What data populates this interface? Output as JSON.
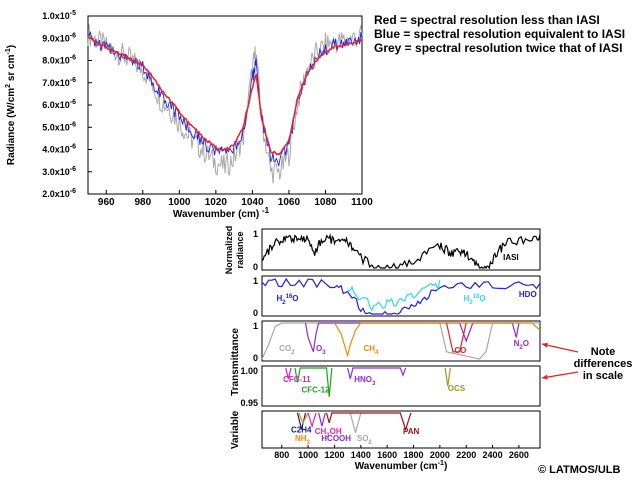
{
  "legend": {
    "red": "Red = spectral resolution less than IASI",
    "blue": "Blue = spectral resolution equivalent to IASI",
    "grey": "Grey = spectral resolution twice that of IASI"
  },
  "note": [
    "Note",
    "differences",
    "in scale"
  ],
  "credit": "© LATMOS/ULB",
  "colors": {
    "red": "#e8202a",
    "blue": "#2020e0",
    "grey": "#a8a8a8",
    "cyan": "#30d8f0",
    "black": "#000000"
  },
  "chart_data": [
    {
      "type": "line",
      "xlabel": "Wavenumber (cm) -1",
      "ylabel": "Radiance (W/cm2 sr cm-1)",
      "xlim": [
        950,
        1100
      ],
      "ylim": [
        2e-06,
        1e-05
      ],
      "x_ticks": [
        "960",
        "980",
        "1000",
        "1020",
        "1040",
        "1060",
        "1080",
        "1100"
      ],
      "y_ticks": [
        "1.0x10-5",
        "9.0x10-6",
        "8.0x10-6",
        "7.0x10-6",
        "6.0x10-6",
        "5.0x10-6",
        "4.0x10-6",
        "3.0x10-6",
        "2.0x10-6"
      ],
      "series": [
        {
          "color": "grey",
          "x": [
            950,
            955,
            960,
            965,
            970,
            975,
            980,
            985,
            990,
            995,
            1000,
            1005,
            1010,
            1015,
            1020,
            1025,
            1030,
            1035,
            1040,
            1042,
            1045,
            1050,
            1055,
            1060,
            1065,
            1070,
            1075,
            1080,
            1085,
            1090,
            1095,
            1100
          ],
          "values": [
            9.2e-06,
            8.9e-06,
            8.6e-06,
            8.4e-06,
            8.2e-06,
            7.9e-06,
            7.6e-06,
            7e-06,
            6.2e-06,
            5.8e-06,
            5.2e-06,
            4.6e-06,
            4.2e-06,
            3.8e-06,
            3.4e-06,
            3.2e-06,
            3.6e-06,
            4.6e-06,
            7.6e-06,
            8.4e-06,
            5.4e-06,
            3e-06,
            3e-06,
            3.8e-06,
            6.2e-06,
            7.6e-06,
            8.3e-06,
            8.7e-06,
            8.8e-06,
            8.9e-06,
            9e-06,
            9.1e-06
          ]
        },
        {
          "color": "blue",
          "x": [
            950,
            955,
            960,
            965,
            970,
            975,
            980,
            985,
            990,
            995,
            1000,
            1005,
            1010,
            1015,
            1020,
            1025,
            1030,
            1035,
            1040,
            1042,
            1045,
            1050,
            1055,
            1060,
            1065,
            1070,
            1075,
            1080,
            1085,
            1090,
            1095,
            1100
          ],
          "values": [
            9.1e-06,
            8.8e-06,
            8.6e-06,
            8.4e-06,
            8.2e-06,
            8e-06,
            7.7e-06,
            7.1e-06,
            6.5e-06,
            6e-06,
            5.5e-06,
            5e-06,
            4.6e-06,
            4.2e-06,
            3.9e-06,
            3.8e-06,
            4e-06,
            4.8e-06,
            7.2e-06,
            7.9e-06,
            5.4e-06,
            3.6e-06,
            3.5e-06,
            4.2e-06,
            6.3e-06,
            7.5e-06,
            8.1e-06,
            8.5e-06,
            8.7e-06,
            8.8e-06,
            8.9e-06,
            9e-06
          ]
        },
        {
          "color": "red",
          "x": [
            950,
            955,
            960,
            965,
            970,
            975,
            980,
            985,
            990,
            995,
            1000,
            1005,
            1010,
            1015,
            1020,
            1025,
            1030,
            1035,
            1040,
            1042,
            1045,
            1050,
            1055,
            1060,
            1065,
            1070,
            1075,
            1080,
            1085,
            1090,
            1095,
            1100
          ],
          "values": [
            9.1e-06,
            8.8e-06,
            8.6e-06,
            8.4e-06,
            8.2e-06,
            8e-06,
            7.8e-06,
            7.3e-06,
            6.7e-06,
            6.2e-06,
            5.7e-06,
            5.2e-06,
            4.8e-06,
            4.4e-06,
            4.1e-06,
            4e-06,
            4.2e-06,
            5e-06,
            6.8e-06,
            7.4e-06,
            5.4e-06,
            3.9e-06,
            3.8e-06,
            4.4e-06,
            6.4e-06,
            7.4e-06,
            8e-06,
            8.4e-06,
            8.6e-06,
            8.7e-06,
            8.8e-06,
            8.9e-06
          ]
        }
      ]
    },
    {
      "type": "line",
      "xlabel": "Wavenumber (cm-1)",
      "xlim": [
        650,
        2760
      ],
      "x_ticks": [
        "800",
        "1000",
        "1200",
        "1400",
        "1600",
        "1800",
        "2000",
        "2200",
        "2400",
        "2600"
      ],
      "group_labels": {
        "normalized": "Normalized radiance",
        "transmittance": "Transmittance",
        "variable": "Variable"
      },
      "panels": [
        {
          "name": "IASI",
          "y_ticks": [
            "1",
            "0"
          ],
          "labels": [
            {
              "text": "IASI",
              "color": "black",
              "x": 2480,
              "y": 0.3
            }
          ],
          "series": [
            {
              "color": "black",
              "x": [
                650,
                700,
                750,
                800,
                850,
                900,
                950,
                1000,
                1050,
                1100,
                1150,
                1200,
                1250,
                1300,
                1350,
                1400,
                1500,
                1600,
                1700,
                1800,
                1900,
                2000,
                2050,
                2100,
                2150,
                2200,
                2250,
                2300,
                2350,
                2400,
                2450,
                2500,
                2600,
                2700,
                2760
              ],
              "values": [
                0.2,
                0.6,
                0.85,
                0.9,
                0.95,
                0.95,
                0.92,
                0.9,
                0.5,
                0.88,
                0.9,
                0.85,
                0.85,
                0.8,
                0.6,
                0.4,
                0.15,
                0.1,
                0.15,
                0.3,
                0.5,
                0.7,
                0.6,
                0.5,
                0.55,
                0.5,
                0.3,
                0.1,
                0.05,
                0.3,
                0.6,
                0.8,
                0.85,
                0.9,
                0.9
              ]
            }
          ]
        },
        {
          "name": "water",
          "y_ticks": [
            "1",
            "0"
          ],
          "labels": [
            {
              "text": "H2 16O",
              "color": "blue",
              "x": 760,
              "y": 0.45
            },
            {
              "text": "H2 18O",
              "color": "cyan",
              "x": 2180,
              "y": 0.45
            },
            {
              "text": "HDO",
              "color": "blue",
              "x": 2600,
              "y": 0.55
            }
          ],
          "series": [
            {
              "color": "blue",
              "x": [
                650,
                800,
                1000,
                1200,
                1300,
                1400,
                1500,
                1600,
                1700,
                1800,
                1900,
                2000,
                2200,
                2400,
                2600,
                2760
              ],
              "values": [
                0.95,
                0.98,
                0.99,
                0.95,
                0.7,
                0.3,
                0.05,
                0.1,
                0.2,
                0.4,
                0.6,
                0.8,
                0.9,
                0.95,
                0.9,
                0.85
              ]
            },
            {
              "color": "cyan",
              "x": [
                1300,
                1400,
                1500,
                1600,
                1700,
                1800,
                1900,
                2000
              ],
              "values": [
                0.9,
                0.6,
                0.3,
                0.4,
                0.5,
                0.6,
                0.8,
                0.95
              ]
            }
          ]
        },
        {
          "name": "transmittance-1",
          "y_ticks": [
            "1",
            "0"
          ],
          "labels": [
            {
              "text": "CO2",
              "color": "grey",
              "x": 780,
              "y": 0.3
            },
            {
              "text": "O3",
              "color": "purple",
              "x": 1060,
              "y": 0.3
            },
            {
              "text": "CH4",
              "color": "orange",
              "x": 1420,
              "y": 0.3
            },
            {
              "text": "CO",
              "color": "red",
              "x": 2110,
              "y": 0.25
            },
            {
              "text": "N2O",
              "color": "purple",
              "x": 2560,
              "y": 0.45
            }
          ],
          "series": [
            {
              "color": "grey",
              "x": [
                650,
                700,
                750,
                800,
                2000,
                2050,
                2300,
                2350,
                2400,
                2760
              ],
              "values": [
                0.0,
                0.4,
                0.9,
                1.0,
                1.0,
                0.2,
                0.0,
                0.2,
                1.0,
                1.0
              ]
            },
            {
              "color": "purple",
              "x": [
                980,
                1000,
                1040,
                1060,
                1080,
                2150,
                2200,
                2250,
                2550,
                2580,
                2600
              ],
              "values": [
                1.0,
                0.6,
                0.2,
                0.7,
                1.0,
                1.0,
                0.5,
                1.0,
                1.0,
                0.6,
                1.0
              ]
            },
            {
              "color": "orange",
              "x": [
                1200,
                1250,
                1300,
                1320,
                1360,
                1400,
                2700,
                2760
              ],
              "values": [
                1.0,
                0.7,
                0.1,
                0.4,
                0.8,
                1.0,
                1.0,
                0.8
              ]
            },
            {
              "color": "red",
              "x": [
                2050,
                2100,
                2150,
                2200
              ],
              "values": [
                1.0,
                0.2,
                0.2,
                1.0
              ]
            }
          ]
        },
        {
          "name": "transmittance-2",
          "y_ticks": [
            "1.00",
            "0.95"
          ],
          "labels": [
            {
              "text": "CFC-11",
              "color": "magenta",
              "x": 810,
              "y": 0.985
            },
            {
              "text": "CFC-12",
              "color": "green",
              "x": 950,
              "y": 0.97
            },
            {
              "text": "HNO3",
              "color": "purple",
              "x": 1350,
              "y": 0.985
            },
            {
              "text": "OCS",
              "color": "olive",
              "x": 2060,
              "y": 0.972
            }
          ],
          "series": [
            {
              "color": "magenta",
              "x": [
                830,
                850,
                870
              ],
              "values": [
                1.0,
                0.985,
                1.0
              ]
            },
            {
              "color": "green",
              "x": [
                900,
                920,
                940,
                1140,
                1160,
                1180
              ],
              "values": [
                1.0,
                0.98,
                1.0,
                1.0,
                0.96,
                1.0
              ]
            },
            {
              "color": "purple",
              "x": [
                1300,
                1320,
                1340,
                1700,
                1720,
                1740
              ],
              "values": [
                1.0,
                0.985,
                1.0,
                1.0,
                0.99,
                1.0
              ]
            },
            {
              "color": "olive",
              "x": [
                2040,
                2060,
                2080
              ],
              "values": [
                1.0,
                0.975,
                1.0
              ]
            }
          ]
        },
        {
          "name": "variable",
          "labels": [
            {
              "text": "C2H4",
              "color": "navy",
              "x": 870,
              "y": 0.5
            },
            {
              "text": "NH3",
              "color": "orange",
              "x": 900,
              "y": 0.25
            },
            {
              "text": "CH3OH",
              "color": "magenta",
              "x": 1050,
              "y": 0.45
            },
            {
              "text": "HCOOH",
              "color": "purple",
              "x": 1100,
              "y": 0.25
            },
            {
              "text": "SO2",
              "color": "grey",
              "x": 1370,
              "y": 0.25
            },
            {
              "text": "PAN",
              "color": "darkred",
              "x": 1720,
              "y": 0.45
            }
          ],
          "series": [
            {
              "color": "navy",
              "x": [
                920,
                950,
                980
              ],
              "values": [
                1.0,
                0.5,
                1.0
              ]
            },
            {
              "color": "orange",
              "x": [
                930,
                960,
                1000
              ],
              "values": [
                1.0,
                0.7,
                1.0
              ]
            },
            {
              "color": "magenta",
              "x": [
                1000,
                1030,
                1060
              ],
              "values": [
                1.0,
                0.6,
                1.0
              ]
            },
            {
              "color": "purple",
              "x": [
                1080,
                1105,
                1130
              ],
              "values": [
                1.0,
                0.6,
                1.0
              ]
            },
            {
              "color": "grey",
              "x": [
                1320,
                1360,
                1400
              ],
              "values": [
                1.0,
                0.4,
                1.0
              ]
            },
            {
              "color": "darkred",
              "x": [
                1140,
                1160,
                1180,
                1700,
                1740,
                1780
              ],
              "values": [
                1.0,
                0.7,
                1.0,
                1.0,
                0.5,
                1.0
              ]
            }
          ]
        }
      ]
    }
  ]
}
